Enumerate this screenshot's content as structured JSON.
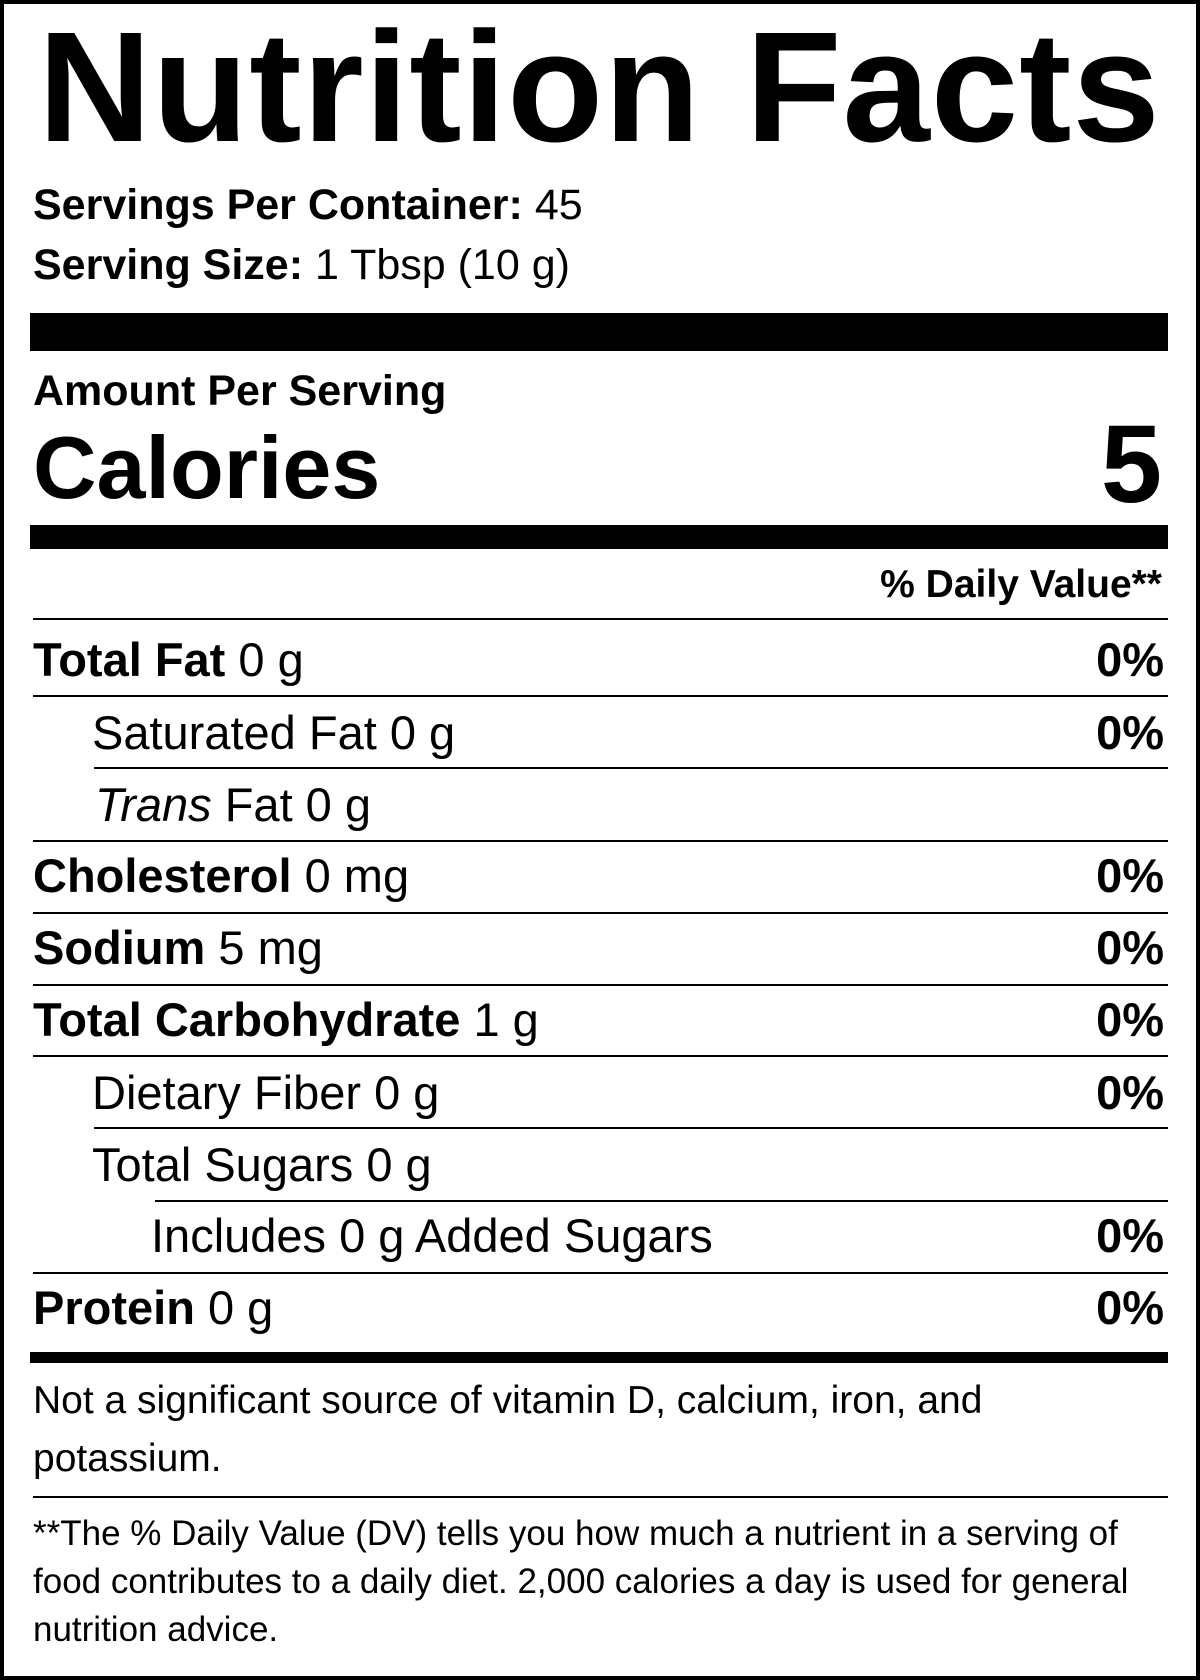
{
  "title": "Nutrition Facts",
  "servings_per_container": {
    "label": "Servings Per Container:",
    "value": "45"
  },
  "serving_size": {
    "label": "Serving Size:",
    "value": "1 Tbsp (10 g)"
  },
  "amount_per_serving": "Amount Per Serving",
  "calories": {
    "label": "Calories",
    "value": "5"
  },
  "daily_value_header": "% Daily Value**",
  "nutrients": [
    {
      "name": "Total Fat",
      "amount": "0 g",
      "dv": "0%"
    },
    {
      "name": "Saturated Fat",
      "amount": "0 g",
      "dv": "0%"
    },
    {
      "name": "Trans",
      "amount": "Fat 0 g",
      "dv": ""
    },
    {
      "name": "Cholesterol",
      "amount": "0 mg",
      "dv": "0%"
    },
    {
      "name": "Sodium",
      "amount": "5 mg",
      "dv": "0%"
    },
    {
      "name": "Total Carbohydrate",
      "amount": "1 g",
      "dv": "0%"
    },
    {
      "name": "Dietary Fiber",
      "amount": "0 g",
      "dv": "0%"
    },
    {
      "name": "Total Sugars",
      "amount": "0 g",
      "dv": ""
    },
    {
      "name": "Includes 0 g Added Sugars",
      "amount": "",
      "dv": "0%"
    },
    {
      "name": "Protein",
      "amount": "0 g",
      "dv": "0%"
    }
  ],
  "not_significant": "Not a significant source of vitamin D, calcium, iron, and potassium.",
  "footnote": "**The % Daily Value (DV) tells you how much a nutrient in a serving of food contributes to a daily diet. 2,000 calories a day is used for general nutrition advice."
}
